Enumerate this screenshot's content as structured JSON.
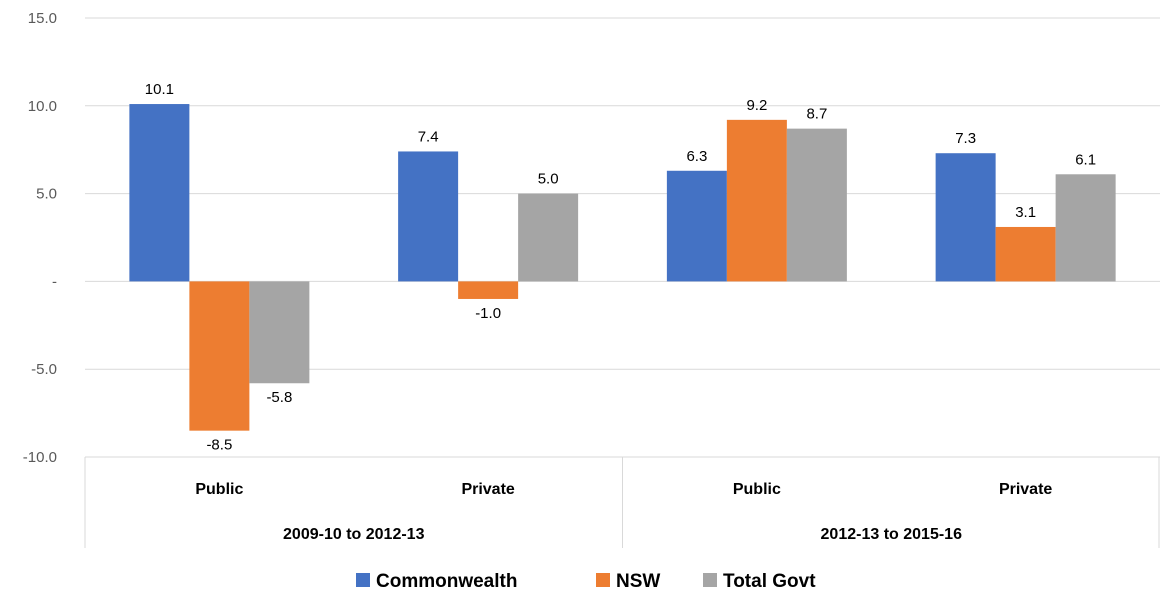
{
  "chart_data": {
    "type": "bar",
    "groups": [
      {
        "label": "2009-10 to 2012-13",
        "categories": [
          "Public",
          "Private"
        ]
      },
      {
        "label": "2012-13 to 2015-16",
        "categories": [
          "Public",
          "Private"
        ]
      }
    ],
    "categories": [
      "Public",
      "Private",
      "Public",
      "Private"
    ],
    "series": [
      {
        "name": "Commonwealth",
        "color": "#4472C4",
        "values": [
          10.1,
          7.4,
          6.3,
          7.3
        ]
      },
      {
        "name": "NSW",
        "color": "#ED7D31",
        "values": [
          -8.5,
          -1.0,
          9.2,
          3.1
        ]
      },
      {
        "name": "Total Govt",
        "color": "#A5A5A5",
        "values": [
          -5.8,
          5.0,
          8.7,
          6.1
        ]
      }
    ],
    "y_ticks": [
      "15.0",
      "10.0",
      "5.0",
      "-",
      "-5.0",
      "-10.0"
    ],
    "y_tick_values": [
      15,
      10,
      5,
      0,
      -5,
      -10
    ],
    "ylim": [
      -10,
      15
    ],
    "grid": true,
    "legend_position": "bottom",
    "xlabel": "",
    "ylabel": ""
  }
}
